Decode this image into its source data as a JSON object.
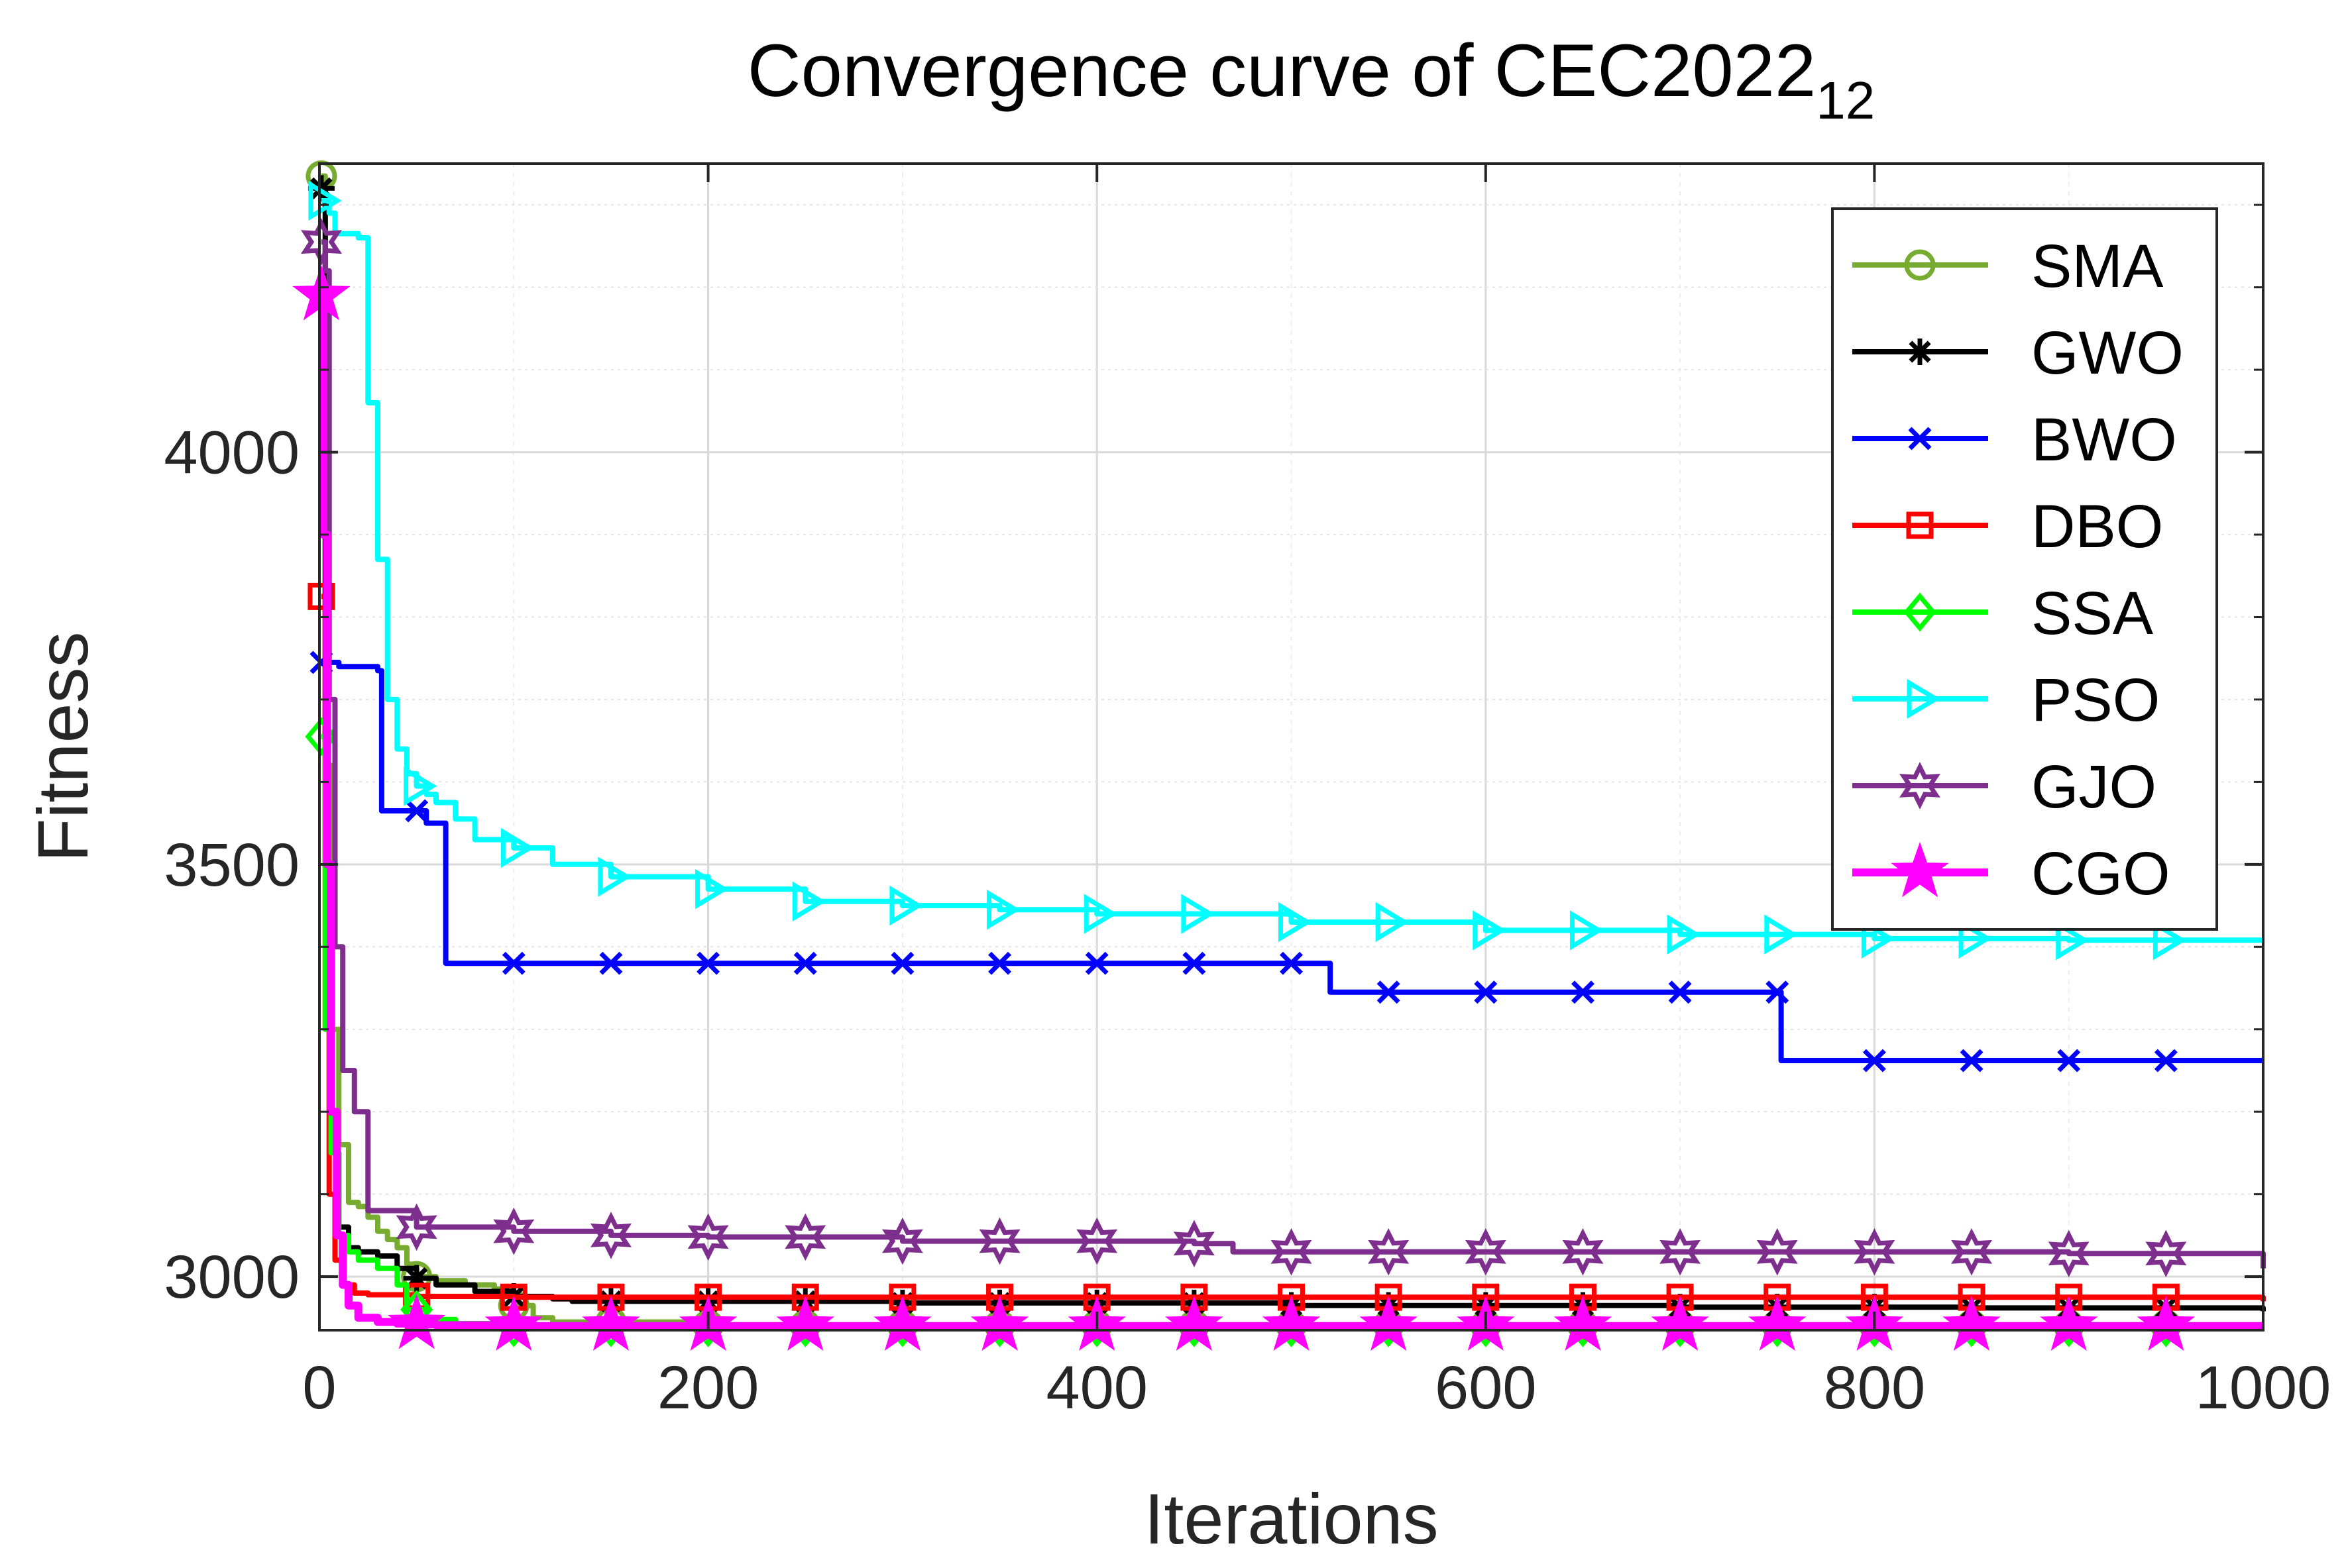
{
  "chart_data": {
    "type": "line",
    "title": "Convergence curve of CEC2022",
    "title_subscript": "12",
    "xlabel": "Iterations",
    "ylabel": "Fitness",
    "xlim": [
      0,
      1000
    ],
    "ylim": [
      2935,
      4350
    ],
    "xticks": [
      0,
      200,
      400,
      600,
      800,
      1000
    ],
    "xtick_labels": [
      "0",
      "200",
      "400",
      "600",
      "800",
      "1000"
    ],
    "yticks": [
      3000,
      3500,
      4000
    ],
    "ytick_labels": [
      "3000",
      "3500",
      "4000"
    ],
    "grid": true,
    "legend_position": "top-right",
    "marker_every": 50,
    "series": [
      {
        "name": "SMA",
        "color": "#77AC30",
        "marker": "circle",
        "x": [
          1,
          3,
          6,
          10,
          15,
          20,
          25,
          30,
          35,
          40,
          45,
          50,
          60,
          75,
          90,
          100,
          110,
          120,
          150,
          200,
          1000
        ],
        "values": [
          4335,
          3620,
          3300,
          3160,
          3090,
          3085,
          3072,
          3055,
          3045,
          3035,
          3015,
          3000,
          2995,
          2990,
          2985,
          2965,
          2950,
          2945,
          2945,
          2941,
          2941
        ]
      },
      {
        "name": "GWO",
        "color": "#000000",
        "marker": "asterisk",
        "x": [
          1,
          3,
          6,
          10,
          15,
          20,
          30,
          40,
          50,
          60,
          80,
          100,
          120,
          130,
          300,
          500,
          700,
          850,
          1000
        ],
        "values": [
          4320,
          3500,
          3150,
          3060,
          3035,
          3030,
          3025,
          3010,
          2998,
          2990,
          2982,
          2976,
          2973,
          2970,
          2968,
          2965,
          2963,
          2962,
          2958
        ]
      },
      {
        "name": "BWO",
        "color": "#0000FF",
        "marker": "x",
        "x": [
          1,
          10,
          30,
          32,
          55,
          65,
          500,
          520,
          750,
          752,
          1000
        ],
        "values": [
          3745,
          3740,
          3735,
          3565,
          3550,
          3380,
          3380,
          3345,
          3345,
          3262,
          3262
        ]
      },
      {
        "name": "DBO",
        "color": "#FF0000",
        "marker": "square",
        "x": [
          1,
          3,
          5,
          8,
          12,
          18,
          25,
          50,
          100,
          150,
          200,
          1000
        ],
        "values": [
          3825,
          3300,
          3100,
          3020,
          2990,
          2980,
          2978,
          2976,
          2975,
          2975,
          2975,
          2970
        ]
      },
      {
        "name": "SSA",
        "color": "#00FF00",
        "marker": "diamond",
        "x": [
          1,
          3,
          6,
          10,
          15,
          20,
          30,
          40,
          45,
          55,
          70,
          90,
          100,
          1000
        ],
        "values": [
          3655,
          3300,
          3150,
          3050,
          3030,
          3020,
          3010,
          2990,
          2960,
          2948,
          2943,
          2940,
          2938,
          2938
        ]
      },
      {
        "name": "PSO",
        "color": "#00FFFF",
        "marker": "triangle-right",
        "x": [
          1,
          5,
          8,
          20,
          25,
          30,
          35,
          40,
          45,
          50,
          55,
          60,
          70,
          80,
          100,
          120,
          150,
          200,
          250,
          300,
          350,
          400,
          500,
          600,
          700,
          800,
          900,
          1000
        ],
        "values": [
          4305,
          4290,
          4265,
          4260,
          4060,
          3870,
          3700,
          3640,
          3610,
          3595,
          3585,
          3575,
          3555,
          3530,
          3520,
          3500,
          3485,
          3470,
          3455,
          3450,
          3445,
          3440,
          3430,
          3420,
          3415,
          3410,
          3408,
          3408
        ]
      },
      {
        "name": "GJO",
        "color": "#7E2F8E",
        "marker": "hexagram",
        "x": [
          1,
          3,
          5,
          8,
          12,
          18,
          25,
          30,
          50,
          100,
          150,
          200,
          300,
          450,
          470,
          700,
          900,
          1000
        ],
        "values": [
          4255,
          4220,
          3700,
          3400,
          3250,
          3200,
          3080,
          3080,
          3060,
          3055,
          3050,
          3048,
          3043,
          3040,
          3030,
          3030,
          3028,
          3010
        ]
      },
      {
        "name": "CGO",
        "color": "#FF00FF",
        "marker": "pentagram",
        "x": [
          1,
          2,
          4,
          6,
          9,
          12,
          15,
          20,
          30,
          40,
          50,
          60,
          100,
          1000
        ],
        "values": [
          4190,
          3900,
          3500,
          3200,
          3050,
          2990,
          2965,
          2950,
          2945,
          2943,
          2942,
          2941,
          2940,
          2940
        ]
      }
    ]
  }
}
